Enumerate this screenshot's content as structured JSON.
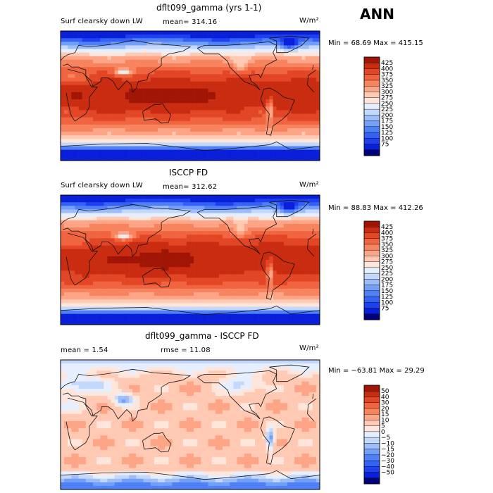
{
  "season": "ANN",
  "colors": {
    "abs_levels": [
      "#00007a",
      "#0a1fd9",
      "#1e40ef",
      "#3562f4",
      "#4f80f6",
      "#729ff8",
      "#9dbdf9",
      "#c4d8fb",
      "#e6efff",
      "#ffe6dc",
      "#ffc9b3",
      "#fda586",
      "#f8835f",
      "#f06540",
      "#e24625",
      "#c92c10",
      "#a01505",
      "#850000"
    ],
    "diff_levels": [
      "#00007a",
      "#0a1fd9",
      "#1e40ef",
      "#3562f4",
      "#4f80f6",
      "#729ff8",
      "#9dbdf9",
      "#c4d8fb",
      "#e6efff",
      "#ffe6dc",
      "#ffc9b3",
      "#fda586",
      "#f8835f",
      "#f06540",
      "#e24625",
      "#c92c10",
      "#a01505",
      "#850000"
    ]
  },
  "chart_data": [
    {
      "type": "heatmap",
      "title": "dflt099_gamma (yrs 1-1)",
      "variable_label": "Surf clearsky down LW",
      "mean_text": "mean= 314.16",
      "units_text": "W/m²",
      "min_max_text": "Min =  68.69 Max = 415.15",
      "min": 68.69,
      "max": 415.15,
      "mean": 314.16,
      "colorbar_levels": [
        "425",
        "400",
        "375",
        "350",
        "325",
        "300",
        "275",
        "250",
        "225",
        "200",
        "175",
        "150",
        "125",
        "100",
        "75"
      ]
    },
    {
      "type": "heatmap",
      "title": "ISCCP FD",
      "variable_label": "Surf clearsky down LW",
      "mean_text": "mean= 312.62",
      "units_text": "W/m²",
      "min_max_text": "Min =  88.83 Max = 412.26",
      "min": 88.83,
      "max": 412.26,
      "mean": 312.62,
      "colorbar_levels": [
        "425",
        "400",
        "375",
        "350",
        "325",
        "300",
        "275",
        "250",
        "225",
        "200",
        "175",
        "150",
        "125",
        "100",
        "75"
      ]
    },
    {
      "type": "heatmap",
      "title": "dflt099_gamma - ISCCP FD",
      "mean_text": "mean =    1.54",
      "rmse_text": "rmse =   11.08",
      "units_text": "W/m²",
      "min_max_text": "Min = −63.81 Max =   29.29",
      "min": -63.81,
      "max": 29.29,
      "mean": 1.54,
      "rmse": 11.08,
      "colorbar_levels": [
        "50",
        "40",
        "30",
        "20",
        "15",
        "10",
        "5",
        "0",
        "−5",
        "−10",
        "−15",
        "−20",
        "−30",
        "−40",
        "−50"
      ]
    }
  ]
}
